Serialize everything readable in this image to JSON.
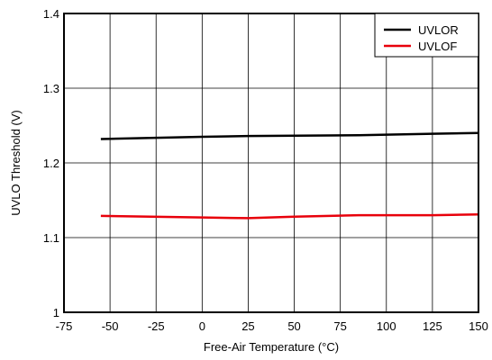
{
  "chart_data": {
    "type": "line",
    "title": "",
    "xlabel": "Free-Air Temperature (°C)",
    "ylabel": "UVLO Threshold (V)",
    "xlim": [
      -75,
      150
    ],
    "ylim": [
      1.0,
      1.4
    ],
    "x_ticks": [
      -75,
      -50,
      -25,
      0,
      25,
      50,
      75,
      100,
      125,
      150
    ],
    "y_ticks": [
      1.0,
      1.1,
      1.2,
      1.3,
      1.4
    ],
    "x_tick_labels": [
      "-75",
      "-50",
      "-25",
      "0",
      "25",
      "50",
      "75",
      "100",
      "125",
      "150"
    ],
    "y_tick_labels": [
      "1",
      "1.1",
      "1.2",
      "1.3",
      "1.4"
    ],
    "grid": true,
    "legend_position": "top-right",
    "series": [
      {
        "name": "UVLOR",
        "color": "#000000",
        "x": [
          -55,
          0,
          25,
          85,
          125,
          150
        ],
        "y": [
          1.232,
          1.235,
          1.236,
          1.237,
          1.239,
          1.24
        ]
      },
      {
        "name": "UVLOF",
        "color": "#e8000b",
        "x": [
          -55,
          0,
          25,
          50,
          85,
          125,
          150
        ],
        "y": [
          1.129,
          1.127,
          1.126,
          1.128,
          1.13,
          1.13,
          1.131
        ]
      }
    ]
  }
}
